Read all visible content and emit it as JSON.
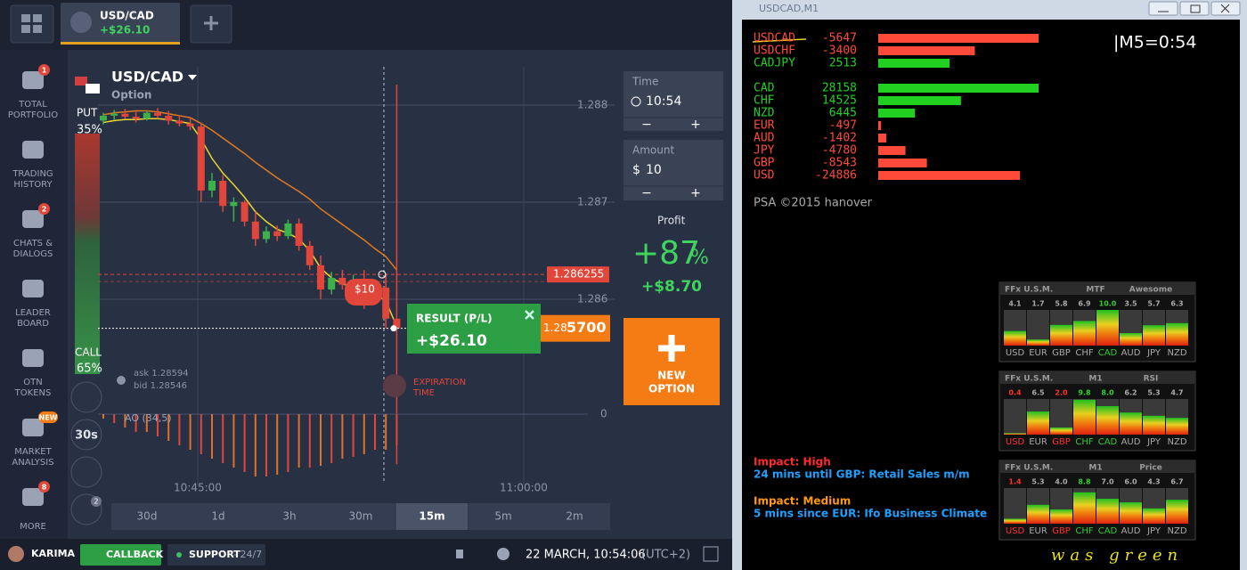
{
  "top_bar": {
    "tab_asset": "USD/CAD",
    "tab_profit": "+$26.10"
  },
  "sidebar": [
    {
      "lines": [
        "TOTAL",
        "PORTFOLIO"
      ],
      "badge": "1"
    },
    {
      "lines": [
        "TRADING",
        "HISTORY"
      ]
    },
    {
      "lines": [
        "CHATS &",
        "DIALOGS"
      ],
      "badge": "2"
    },
    {
      "lines": [
        "LEADER",
        "BOARD"
      ]
    },
    {
      "lines": [
        "OTN",
        "TOKENS"
      ]
    },
    {
      "lines": [
        "MARKET",
        "ANALYSIS"
      ],
      "badge": "NEW"
    },
    {
      "lines": [
        "MORE"
      ],
      "badge": "8"
    }
  ],
  "chart_data": {
    "type": "candlestick",
    "title": "USD/CAD",
    "subtitle": "Option",
    "candles": [
      [
        1.28784,
        1.28792,
        1.2878,
        1.28789
      ],
      [
        1.28789,
        1.28795,
        1.28785,
        1.28791
      ],
      [
        1.28791,
        1.28796,
        1.28786,
        1.28788
      ],
      [
        1.28788,
        1.28793,
        1.28782,
        1.28786
      ],
      [
        1.28786,
        1.28794,
        1.28784,
        1.28792
      ],
      [
        1.28792,
        1.28797,
        1.28786,
        1.28789
      ],
      [
        1.28789,
        1.28794,
        1.2878,
        1.28784
      ],
      [
        1.28784,
        1.2879,
        1.28778,
        1.28781
      ],
      [
        1.28781,
        1.28787,
        1.28774,
        1.28778
      ],
      [
        1.28778,
        1.28782,
        1.287,
        1.28712
      ],
      [
        1.28712,
        1.2873,
        1.28705,
        1.28722
      ],
      [
        1.28722,
        1.28728,
        1.2869,
        1.28696
      ],
      [
        1.28696,
        1.28705,
        1.2868,
        1.287
      ],
      [
        1.287,
        1.28702,
        1.28675,
        1.2868
      ],
      [
        1.2868,
        1.2869,
        1.28655,
        1.28662
      ],
      [
        1.28662,
        1.28675,
        1.28658,
        1.2867
      ],
      [
        1.2867,
        1.28676,
        1.2866,
        1.28665
      ],
      [
        1.28665,
        1.28682,
        1.28662,
        1.28678
      ],
      [
        1.28678,
        1.28683,
        1.2865,
        1.28655
      ],
      [
        1.28655,
        1.2866,
        1.2863,
        1.28635
      ],
      [
        1.28635,
        1.28645,
        1.286,
        1.2861
      ],
      [
        1.2861,
        1.28628,
        1.28605,
        1.28622
      ],
      [
        1.28622,
        1.2863,
        1.2861,
        1.28615
      ],
      [
        1.28615,
        1.28625,
        1.286,
        1.2862
      ],
      [
        1.2862,
        1.2863,
        1.2859,
        1.28605
      ],
      [
        1.28605,
        1.2862,
        1.286,
        1.28612
      ],
      [
        1.28612,
        1.28625,
        1.2857,
        1.2858
      ],
      [
        1.2858,
        1.28821,
        1.2843,
        1.2857
      ]
    ],
    "ma_fast": {
      "color": "#e8d630",
      "values": [
        1.28782,
        1.28784,
        1.28785,
        1.28785,
        1.28786,
        1.28786,
        1.28785,
        1.28783,
        1.28781,
        1.28765,
        1.28745,
        1.2873,
        1.28718,
        1.28705,
        1.2869,
        1.2868,
        1.28672,
        1.28668,
        1.28662,
        1.2865,
        1.28632,
        1.28622,
        1.28616,
        1.28612,
        1.28608,
        1.28606,
        1.28598,
        1.28572
      ]
    },
    "ma_slow": {
      "color": "#e07a20",
      "values": [
        1.2879,
        1.28792,
        1.28793,
        1.28794,
        1.28794,
        1.28793,
        1.28791,
        1.28789,
        1.28787,
        1.28781,
        1.28774,
        1.28766,
        1.28758,
        1.2875,
        1.28741,
        1.28733,
        1.28725,
        1.28718,
        1.28711,
        1.28703,
        1.28693,
        1.28685,
        1.28677,
        1.28669,
        1.28661,
        1.28652,
        1.28644,
        1.2863
      ]
    },
    "ylim": [
      1.284908,
      1.288394
    ],
    "yticks": [
      1.288,
      1.287,
      1.286
    ],
    "xticks": [
      "10:45:00",
      "11:00:00"
    ],
    "strike": 1.286255,
    "current": {
      "value": 1.2857,
      "label_head": "1.28",
      "label_tail": "5700"
    },
    "bet": "$10",
    "ask": "ask 1.28594",
    "bid": "bid 1.28546",
    "put": {
      "label": "PUT",
      "percent": "35%"
    },
    "call": {
      "label": "CALL",
      "percent": "65%"
    },
    "result": {
      "title": "RESULT (P/L)",
      "value": "+$26.10"
    },
    "expiration": [
      "EXPIRATION",
      "TIME"
    ],
    "indicator": {
      "name": "AO (34,5)",
      "ylim": [
        -0.0008,
        0.0001
      ],
      "yticks": [
        0
      ],
      "values": [
        -5e-05,
        -0.0001,
        -0.00015,
        -0.0002,
        -0.0002,
        -0.00025,
        -0.0003,
        -0.00035,
        -0.0004,
        -0.00045,
        -0.0005,
        -0.00055,
        -0.0006,
        -0.00065,
        -0.0007,
        -0.0007,
        -0.00068,
        -0.00065,
        -0.0006,
        -0.0006,
        -0.00058,
        -0.00055,
        -0.0005,
        -0.00048,
        -0.00045,
        -0.0004,
        -0.0004,
        -0.00035
      ]
    },
    "timeframes": [
      "30d",
      "1d",
      "3h",
      "30m",
      "15m",
      "5m",
      "2m"
    ],
    "active_timeframe": 4
  },
  "tools": {
    "interval": "30s",
    "badge": "2"
  },
  "trade_panel": {
    "time_label": "Time",
    "time": "10:54",
    "amount_label": "Amount",
    "currency": "$",
    "amount": "10",
    "minus": "−",
    "plus": "+",
    "profit_label": "Profit",
    "profit_percent": "+87",
    "percent_sign": "%",
    "profit_amount": "+$8.70",
    "new_option": [
      "NEW",
      "OPTION"
    ]
  },
  "bottom_bar": {
    "user": "KARIMA",
    "callback": "CALLBACK",
    "support": "SUPPORT",
    "support_hours": "- 24/7",
    "datetime": "22 MARCH, 10:54:06",
    "timezone": "(UTC+2)"
  },
  "mt4": {
    "title": "USDCAD,M1",
    "pairs": [
      {
        "name": "USDCAD",
        "value": -5647
      },
      {
        "name": "USDCHF",
        "value": -3400
      },
      {
        "name": "CADJPY",
        "value": 2513
      }
    ],
    "currencies": [
      {
        "name": "CAD",
        "value": 28158
      },
      {
        "name": "CHF",
        "value": 14525
      },
      {
        "name": "NZD",
        "value": 6445
      },
      {
        "name": "EUR",
        "value": -497
      },
      {
        "name": "AUD",
        "value": -1402
      },
      {
        "name": "JPY",
        "value": -4780
      },
      {
        "name": "GBP",
        "value": -8543
      },
      {
        "name": "USD",
        "value": -24886
      }
    ],
    "pair_scale": 5647,
    "currency_scale": 28158,
    "timer": "|M5=0:54",
    "credit": "PSA ©2015 hanover",
    "news": [
      {
        "impact": "Impact: High",
        "impact_color": "#ff2a2a",
        "text": "24 mins until GBP: Retail Sales m/m"
      },
      {
        "impact": "Impact: Medium",
        "impact_color": "#ff9a10",
        "text": "5 mins since EUR: Ifo Business Climate"
      }
    ],
    "currency_labels": [
      "USD",
      "EUR",
      "GBP",
      "CHF",
      "CAD",
      "AUD",
      "JPY",
      "NZD"
    ],
    "panels": [
      {
        "header": [
          "FFx U.S.M.",
          "MTF",
          "Awesome"
        ],
        "ylim": [
          0,
          10
        ],
        "values": [
          4.1,
          1.7,
          5.8,
          6.9,
          10,
          3.5,
          5.7,
          6.3
        ],
        "value_labels": [
          "4.1",
          "1.7",
          "5.8",
          "6.9",
          "10.0",
          "3.5",
          "5.7",
          "6.3"
        ],
        "value_colors": [
          "#aaa",
          "#aaa",
          "#aaa",
          "#aaa",
          "#2ecc2e",
          "#aaa",
          "#aaa",
          "#aaa"
        ],
        "label_colors": [
          "#aaa",
          "#aaa",
          "#aaa",
          "#aaa",
          "#2ecc2e",
          "#aaa",
          "#aaa",
          "#aaa"
        ]
      },
      {
        "header": [
          "FFx U.S.M.",
          "M1",
          "RSI"
        ],
        "ylim": [
          0,
          10
        ],
        "values": [
          0.4,
          6.5,
          2,
          9.8,
          8,
          6.2,
          5.3,
          4.7
        ],
        "value_labels": [
          "0.4",
          "6.5",
          "2.0",
          "9.8",
          "8.0",
          "6.2",
          "5.3",
          "4.7"
        ],
        "value_colors": [
          "#ff3030",
          "#aaa",
          "#ff3030",
          "#2ecc2e",
          "#2ecc2e",
          "#aaa",
          "#aaa",
          "#aaa"
        ],
        "label_colors": [
          "#ff3030",
          "#aaa",
          "#ff3030",
          "#2ecc2e",
          "#2ecc2e",
          "#aaa",
          "#aaa",
          "#aaa"
        ]
      },
      {
        "header": [
          "FFx U.S.M.",
          "M1",
          "Price"
        ],
        "ylim": [
          0,
          10
        ],
        "values": [
          1.4,
          5.3,
          4,
          8.8,
          7,
          6,
          4.3,
          6.7
        ],
        "value_labels": [
          "1.4",
          "5.3",
          "4.0",
          "8.8",
          "7.0",
          "6.0",
          "4.3",
          "6.7"
        ],
        "value_colors": [
          "#ff3030",
          "#aaa",
          "#aaa",
          "#2ecc2e",
          "#aaa",
          "#aaa",
          "#aaa",
          "#aaa"
        ],
        "label_colors": [
          "#ff3030",
          "#aaa",
          "#ff3030",
          "#2ecc2e",
          "#2ecc2e",
          "#aaa",
          "#aaa",
          "#aaa"
        ]
      }
    ],
    "annotation": "was green"
  }
}
